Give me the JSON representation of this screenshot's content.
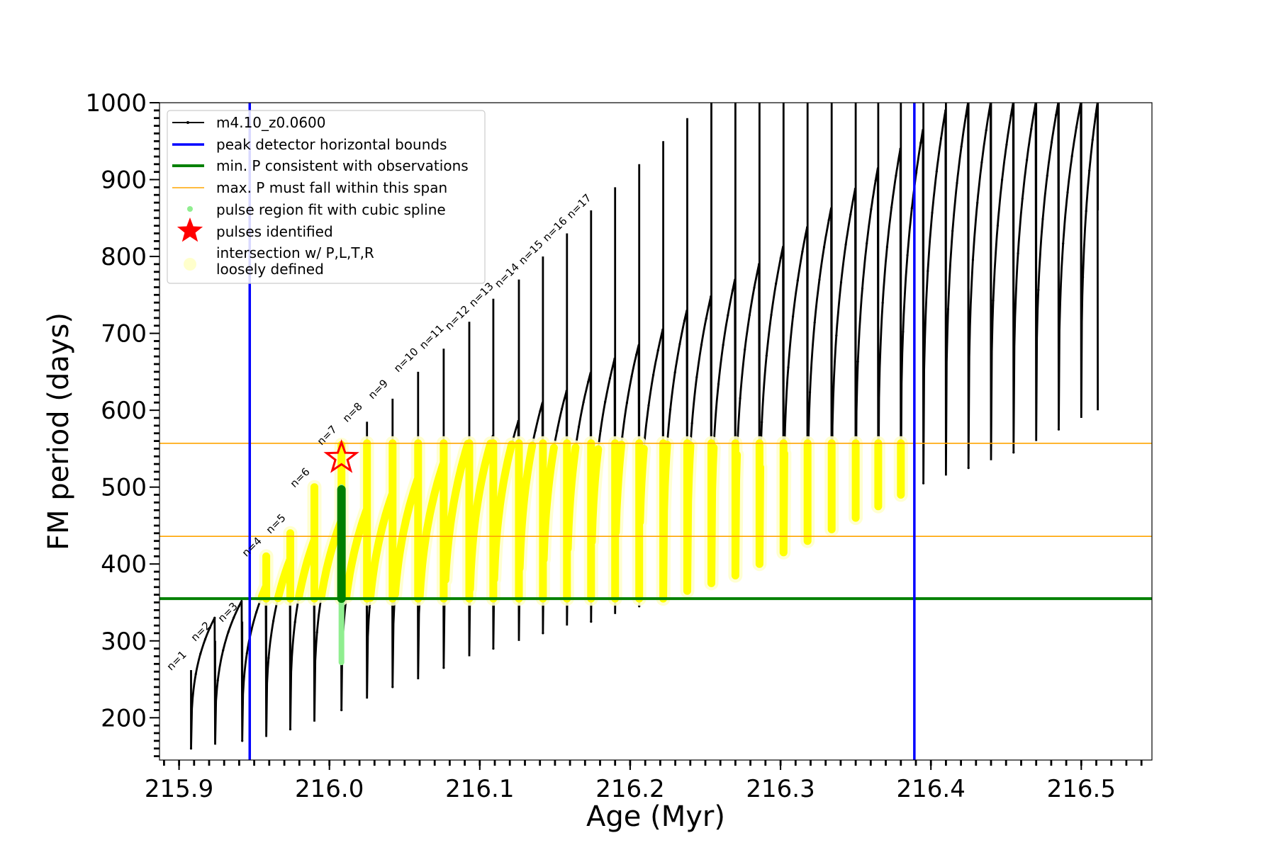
{
  "chart_data": {
    "type": "line",
    "xlabel": "Age (Myr)",
    "ylabel": "FM period (days)",
    "xlim": [
      215.887,
      216.547
    ],
    "ylim": [
      145,
      1000
    ],
    "xticks": [
      215.9,
      216.0,
      216.1,
      216.2,
      216.3,
      216.4,
      216.5
    ],
    "xtick_labels": [
      "215.9",
      "216.0",
      "216.1",
      "216.2",
      "216.3",
      "216.4",
      "216.5"
    ],
    "yticks": [
      200,
      300,
      400,
      500,
      600,
      700,
      800,
      900,
      1000
    ],
    "ytick_labels": [
      "200",
      "300",
      "400",
      "500",
      "600",
      "700",
      "800",
      "900",
      "1000"
    ],
    "grid": false,
    "legend_position": "upper-left",
    "colors": {
      "model": "#000000",
      "peak_bounds": "#0000ff",
      "min_period": "#008000",
      "max_period_span": "#ffa500",
      "spline_fit": "#90ee90",
      "pulse_marker": "#ff0000",
      "loose_intersection": "#ffff00",
      "loose_intersection_edge": "#ffffcc"
    },
    "legend": [
      {
        "key": "model",
        "label": "m4.10_z0.0600"
      },
      {
        "key": "peak_bounds",
        "label": "peak detector horizontal bounds"
      },
      {
        "key": "min_period",
        "label": "min. P consistent with observations"
      },
      {
        "key": "max_period_span",
        "label": "max. P must fall within this span"
      },
      {
        "key": "spline_fit",
        "label": "pulse region fit with cubic spline"
      },
      {
        "key": "pulse_marker",
        "label": "pulses identified"
      },
      {
        "key": "loose_intersection",
        "label": "intersection w/ P,L,T,R",
        "label2": "loosely defined"
      }
    ],
    "vertical_lines": [
      215.947,
      216.389
    ],
    "horizontal_lines": {
      "min_period": 355,
      "max_period_span": [
        436,
        557
      ]
    },
    "pulses": {
      "ages": [
        215.908,
        215.924,
        215.942,
        215.958,
        215.974,
        215.99,
        216.008,
        216.025,
        216.042,
        216.059,
        216.076,
        216.093,
        216.109,
        216.126,
        216.142,
        216.158,
        216.174,
        216.19,
        216.206,
        216.222,
        216.238,
        216.254,
        216.27,
        216.286,
        216.302,
        216.318,
        216.334,
        216.35,
        216.365,
        216.38,
        216.395,
        216.41,
        216.425,
        216.44,
        216.455,
        216.47,
        216.485,
        216.5,
        216.511
      ],
      "start_periods": [
        160,
        165,
        170,
        175,
        185,
        195,
        210,
        225,
        240,
        250,
        265,
        280,
        290,
        300,
        310,
        320,
        325,
        335,
        345,
        355,
        365,
        375,
        385,
        400,
        415,
        430,
        445,
        460,
        475,
        490,
        505,
        515,
        525,
        535,
        545,
        560,
        575,
        590,
        600
      ],
      "peak_periods": [
        330,
        352,
        370,
        405,
        430,
        455,
        470,
        490,
        510,
        530,
        560,
        567,
        586,
        610,
        625,
        649,
        667,
        685,
        705,
        730,
        748,
        770,
        790,
        813,
        838,
        863,
        888,
        915,
        940,
        965,
        990,
        1000,
        1000,
        1000,
        1000,
        1000,
        1000,
        1000,
        1000
      ],
      "spike_tops": [
        262,
        300,
        325,
        410,
        440,
        500,
        555,
        585,
        615,
        650,
        680,
        715,
        745,
        770,
        800,
        830,
        860,
        890,
        920,
        950,
        980,
        1000,
        1000,
        1000,
        1000,
        1000,
        1000,
        1000,
        1000,
        1000,
        1000,
        1000,
        1000,
        1000,
        1000,
        1000,
        1000,
        1000,
        1000
      ],
      "labels": [
        "n=1",
        "n=2",
        "n=3",
        "n=4",
        "n=5",
        "n=6",
        "n=7",
        "n=8",
        "n=9",
        "n=10",
        "n=11",
        "n=12",
        "n=13",
        "n=14",
        "n=15",
        "n=16",
        "n=17"
      ]
    },
    "spline_fit_region": {
      "age": 216.008,
      "period_range": [
        272,
        500
      ]
    },
    "min_period_segment": {
      "age": 216.008,
      "period_range": [
        355,
        497
      ]
    },
    "pulse_identified": {
      "age": 216.008,
      "period": 538
    }
  }
}
